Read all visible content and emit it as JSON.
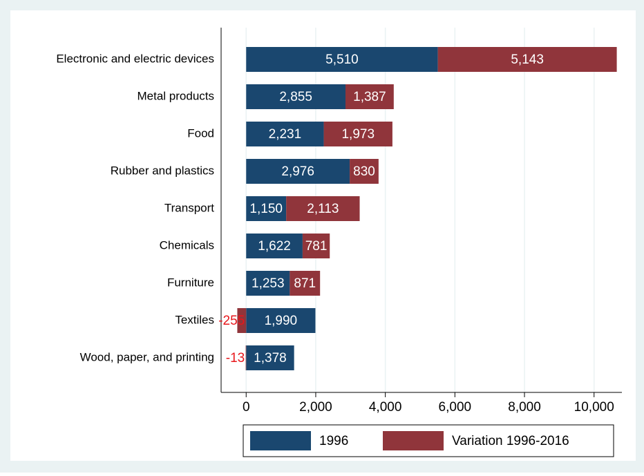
{
  "chart_data": {
    "type": "stacked-bar-horizontal",
    "categories": [
      "Electronic and electric devices",
      "Metal products",
      "Food",
      "Rubber and plastics",
      "Transport",
      "Chemicals",
      "Furniture",
      "Textiles",
      "Wood, paper, and printing"
    ],
    "series": [
      {
        "name": "1996",
        "color": "#1a476f",
        "values": [
          5510,
          2855,
          2231,
          2976,
          1150,
          1622,
          1253,
          1990,
          1378
        ],
        "value_labels": [
          "5,510",
          "2,855",
          "2,231",
          "2,976",
          "1,150",
          "1,622",
          "1,253",
          "1,990",
          "1,378"
        ]
      },
      {
        "name": "Variation 1996-2016",
        "color": "#90353b",
        "values": [
          5143,
          1387,
          1973,
          830,
          2113,
          781,
          871,
          -255,
          -13
        ],
        "value_labels": [
          "5,143",
          "1,387",
          "1,973",
          "830",
          "2,113",
          "781",
          "871",
          "-255",
          "-13"
        ]
      }
    ],
    "xlim": [
      -720,
      10800
    ],
    "xticks": [
      0,
      {
        "value": 2000,
        "label": "2,000"
      },
      {
        "value": 4000,
        "label": "4,000"
      },
      {
        "value": 6000,
        "label": "6,000"
      },
      {
        "value": 8000,
        "label": "8,000"
      },
      {
        "value": 10000,
        "label": "10,000"
      }
    ],
    "grid": true,
    "legend": "bottom"
  }
}
